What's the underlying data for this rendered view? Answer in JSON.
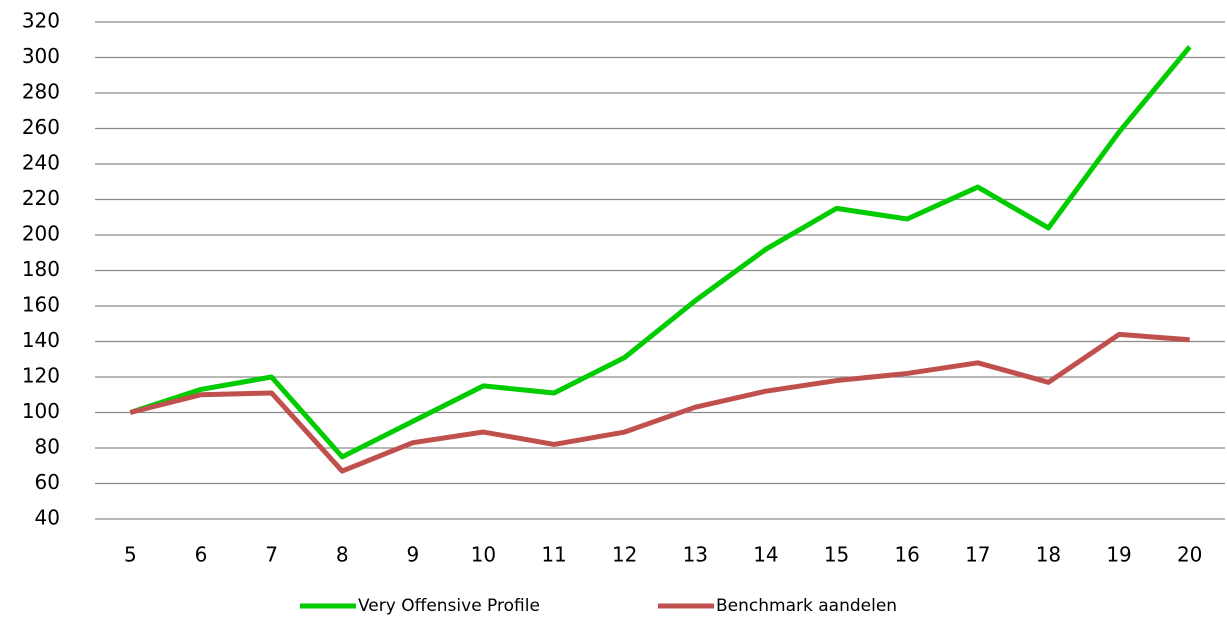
{
  "chart_data": {
    "type": "line",
    "categories": [
      "5",
      "6",
      "7",
      "8",
      "9",
      "10",
      "11",
      "12",
      "13",
      "14",
      "15",
      "16",
      "17",
      "18",
      "19",
      "20"
    ],
    "series": [
      {
        "name": "Very Offensive Profile",
        "color": "#00cc00",
        "values": [
          100,
          113,
          120,
          75,
          95,
          115,
          111,
          131,
          163,
          192,
          215,
          209,
          227,
          204,
          258,
          306
        ]
      },
      {
        "name": "Benchmark aandelen",
        "color": "#c0504d",
        "values": [
          100,
          110,
          111,
          67,
          83,
          89,
          82,
          89,
          103,
          112,
          118,
          122,
          128,
          117,
          144,
          141
        ]
      }
    ],
    "ylim": [
      40,
      320
    ],
    "yticks": [
      40,
      60,
      80,
      100,
      120,
      140,
      160,
      180,
      200,
      220,
      240,
      260,
      280,
      300,
      320
    ],
    "grid": true,
    "legend": "bottom"
  }
}
